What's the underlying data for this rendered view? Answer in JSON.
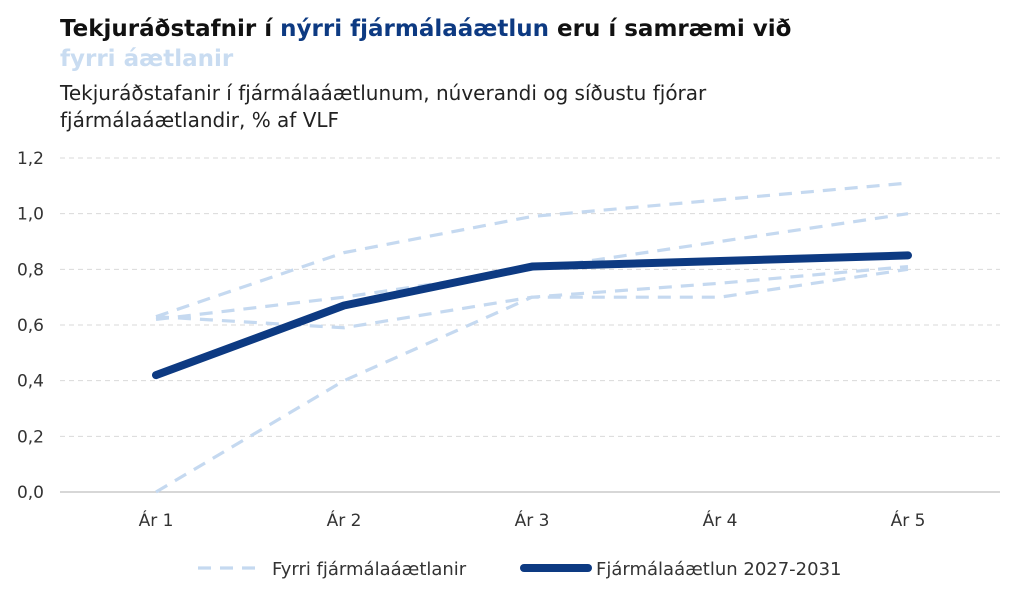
{
  "title": {
    "part1": "Tekjuráðstafnir í ",
    "part2": "nýrri fjármálaáætlun",
    "part3": " eru í samræmi við ",
    "part4": "fyrri áætlanir"
  },
  "subtitle": "Tekjuráðstafanir í fjármálaáætlunum, núverandi og síðustu fjórar fjármálaáætlandir, % af VLF",
  "colors": {
    "current": "#0d3a82",
    "previous": "#c5d9f0",
    "grid": "#d9d9d9"
  },
  "chart_data": {
    "type": "line",
    "categories": [
      "Ár 1",
      "Ár 2",
      "Ár 3",
      "Ár 4",
      "Ár 5"
    ],
    "ylim": [
      0,
      1.2
    ],
    "yticks": [
      "0,0",
      "0,2",
      "0,4",
      "0,6",
      "0,8",
      "1,0",
      "1,2"
    ],
    "ytick_values": [
      0,
      0.2,
      0.4,
      0.6,
      0.8,
      1.0,
      1.2
    ],
    "grid": true,
    "legend_position": "bottom",
    "series": [
      {
        "name": "Fyrri fjármálaáætlanir",
        "style": "dashed",
        "values": [
          0.63,
          0.86,
          0.99,
          1.05,
          1.11
        ]
      },
      {
        "name": "",
        "style": "dashed",
        "values": [
          0.62,
          0.7,
          0.8,
          0.9,
          1.0
        ]
      },
      {
        "name": "",
        "style": "dashed",
        "values": [
          0.63,
          0.59,
          0.7,
          0.75,
          0.81
        ]
      },
      {
        "name": "",
        "style": "dashed",
        "values": [
          0.0,
          0.4,
          0.7,
          0.7,
          0.8
        ]
      },
      {
        "name": "Fjármálaáætlun 2027-2031",
        "style": "solid",
        "values": [
          0.42,
          0.67,
          0.81,
          0.83,
          0.85
        ]
      }
    ]
  },
  "legend": {
    "previous_label": "Fyrri fjármálaáætlanir",
    "current_label": "Fjármálaáætlun 2027-2031"
  }
}
